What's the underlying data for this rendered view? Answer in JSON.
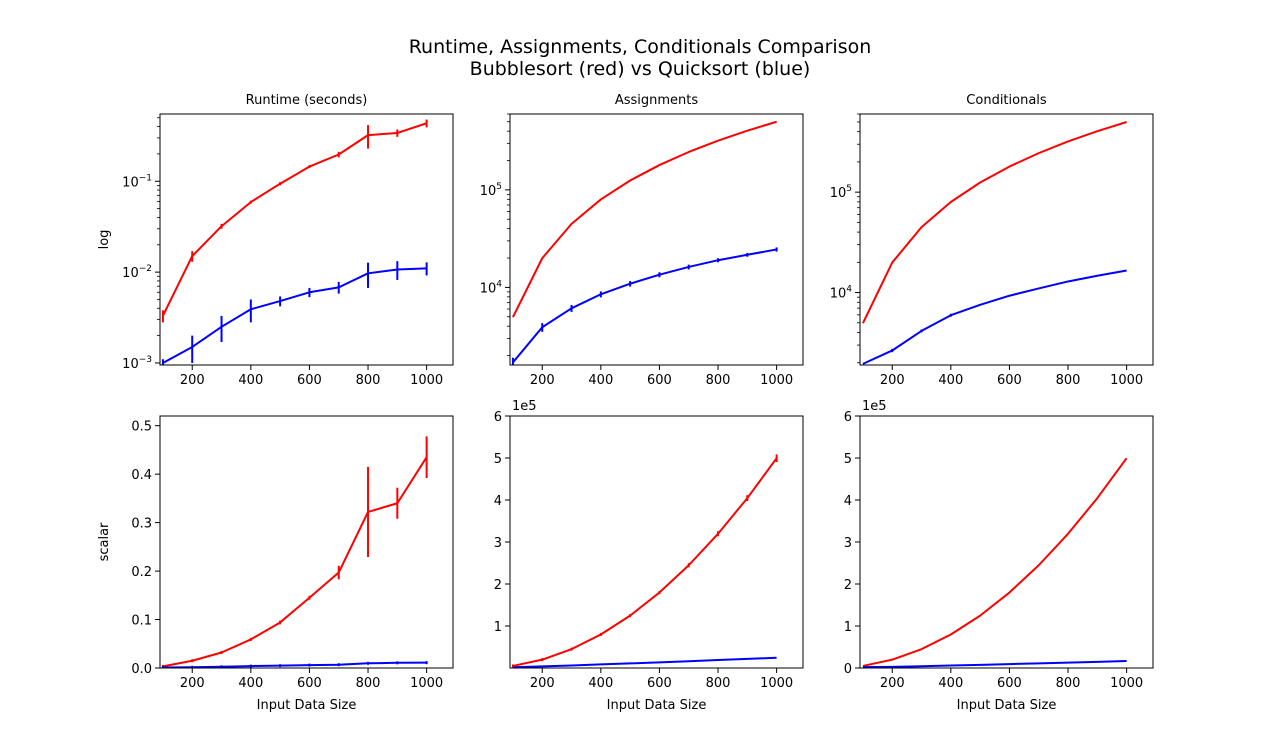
{
  "figure": {
    "title_line1": "Runtime, Assignments, Conditionals Comparison",
    "title_line2": "Bubblesort (red) vs Quicksort (blue)"
  },
  "colors": {
    "bubblesort": "#ff0000",
    "quicksort": "#0000ff"
  },
  "chart_data": [
    {
      "id": "runtime-log",
      "type": "line",
      "title": "Runtime (seconds)",
      "xlabel": "",
      "ylabel": "log",
      "yscale": "log",
      "xlim": [
        90,
        1090
      ],
      "ylim": [
        0.00095,
        0.55
      ],
      "xticks": [
        200,
        400,
        600,
        800,
        1000
      ],
      "yticks": [
        {
          "value": 0.001,
          "base": "10",
          "exp": "−3"
        },
        {
          "value": 0.01,
          "base": "10",
          "exp": "−2"
        },
        {
          "value": 0.1,
          "base": "10",
          "exp": "−1"
        }
      ],
      "x": [
        100,
        200,
        300,
        400,
        500,
        600,
        700,
        800,
        900,
        1000
      ],
      "series": [
        {
          "color": "#ff0000",
          "values": [
            0.0033,
            0.015,
            0.032,
            0.059,
            0.094,
            0.145,
            0.197,
            0.322,
            0.34,
            0.435
          ],
          "errors": [
            0.0005,
            0.002,
            0.002,
            0.002,
            0.004,
            0.004,
            0.014,
            0.093,
            0.032,
            0.043
          ]
        },
        {
          "color": "#0000ff",
          "values": [
            0.001,
            0.0015,
            0.0025,
            0.0039,
            0.0048,
            0.006,
            0.0068,
            0.0097,
            0.0107,
            0.011
          ],
          "errors": [
            0.0001,
            0.0005,
            0.0008,
            0.0011,
            0.0006,
            0.0007,
            0.001,
            0.003,
            0.0025,
            0.0018
          ]
        }
      ]
    },
    {
      "id": "assignments-log",
      "type": "line",
      "title": "Assignments",
      "xlabel": "",
      "ylabel": "",
      "yscale": "log",
      "xlim": [
        90,
        1090
      ],
      "ylim": [
        1600,
        600000
      ],
      "xticks": [
        200,
        400,
        600,
        800,
        1000
      ],
      "yticks": [
        {
          "value": 10000,
          "base": "10",
          "exp": "4"
        },
        {
          "value": 100000,
          "base": "10",
          "exp": "5"
        }
      ],
      "x": [
        100,
        200,
        300,
        400,
        500,
        600,
        700,
        800,
        900,
        1000
      ],
      "series": [
        {
          "color": "#ff0000",
          "values": [
            4950,
            19900,
            44850,
            79800,
            124750,
            179700,
            244650,
            319600,
            404550,
            499500
          ],
          "errors": [
            0,
            0,
            0,
            0,
            0,
            0,
            0,
            0,
            0,
            0
          ]
        },
        {
          "color": "#0000ff",
          "values": [
            1700,
            3900,
            6100,
            8500,
            10900,
            13500,
            16200,
            19000,
            21600,
            24500
          ],
          "errors": [
            200,
            400,
            500,
            600,
            700,
            800,
            900,
            900,
            1000,
            1200
          ]
        }
      ]
    },
    {
      "id": "conditionals-log",
      "type": "line",
      "title": "Conditionals",
      "xlabel": "",
      "ylabel": "",
      "yscale": "log",
      "xlim": [
        90,
        1090
      ],
      "ylim": [
        1900,
        600000
      ],
      "xticks": [
        200,
        400,
        600,
        800,
        1000
      ],
      "yticks": [
        {
          "value": 10000,
          "base": "10",
          "exp": "4"
        },
        {
          "value": 100000,
          "base": "10",
          "exp": "5"
        }
      ],
      "x": [
        100,
        200,
        300,
        400,
        500,
        600,
        700,
        800,
        900,
        1000
      ],
      "series": [
        {
          "color": "#ff0000",
          "values": [
            4950,
            19900,
            44850,
            79800,
            124750,
            179700,
            244650,
            319600,
            404550,
            499500
          ],
          "errors": [
            0,
            0,
            0,
            0,
            0,
            0,
            0,
            0,
            0,
            0
          ]
        },
        {
          "color": "#0000ff",
          "values": [
            1950,
            2650,
            4150,
            5950,
            7550,
            9300,
            11000,
            12900,
            14700,
            16600
          ],
          "errors": [
            0,
            100,
            100,
            150,
            0,
            0,
            0,
            0,
            0,
            0
          ]
        }
      ]
    },
    {
      "id": "runtime-scalar",
      "type": "line",
      "title": "",
      "xlabel": "Input Data Size",
      "ylabel": "scalar",
      "yscale": "linear",
      "xlim": [
        90,
        1090
      ],
      "ylim": [
        0,
        0.52
      ],
      "xticks": [
        200,
        400,
        600,
        800,
        1000
      ],
      "yticks": [
        {
          "value": 0,
          "label": "0.0"
        },
        {
          "value": 0.1,
          "label": "0.1"
        },
        {
          "value": 0.2,
          "label": "0.2"
        },
        {
          "value": 0.3,
          "label": "0.3"
        },
        {
          "value": 0.4,
          "label": "0.4"
        },
        {
          "value": 0.5,
          "label": "0.5"
        }
      ],
      "x": [
        100,
        200,
        300,
        400,
        500,
        600,
        700,
        800,
        900,
        1000
      ],
      "series": [
        {
          "color": "#ff0000",
          "values": [
            0.0033,
            0.015,
            0.032,
            0.059,
            0.094,
            0.145,
            0.197,
            0.322,
            0.34,
            0.435
          ],
          "errors": [
            0.0005,
            0.002,
            0.002,
            0.002,
            0.004,
            0.004,
            0.014,
            0.093,
            0.032,
            0.043
          ]
        },
        {
          "color": "#0000ff",
          "values": [
            0.001,
            0.0015,
            0.0025,
            0.0039,
            0.0048,
            0.006,
            0.0068,
            0.0097,
            0.0107,
            0.011
          ],
          "errors": [
            0.0001,
            0.0005,
            0.0008,
            0.0011,
            0.0006,
            0.0007,
            0.001,
            0.003,
            0.0025,
            0.0018
          ]
        }
      ]
    },
    {
      "id": "assignments-scalar",
      "type": "line",
      "title": "",
      "xlabel": "Input Data Size",
      "ylabel": "",
      "offset_label": "1e5",
      "yscale": "linear",
      "xlim": [
        90,
        1090
      ],
      "ylim": [
        0,
        600000
      ],
      "xticks": [
        200,
        400,
        600,
        800,
        1000
      ],
      "yticks": [
        {
          "value": 100000,
          "label": "1"
        },
        {
          "value": 200000,
          "label": "2"
        },
        {
          "value": 300000,
          "label": "3"
        },
        {
          "value": 400000,
          "label": "4"
        },
        {
          "value": 500000,
          "label": "5"
        },
        {
          "value": 600000,
          "label": "6"
        }
      ],
      "x": [
        100,
        200,
        300,
        400,
        500,
        600,
        700,
        800,
        900,
        1000
      ],
      "series": [
        {
          "color": "#ff0000",
          "values": [
            4950,
            19900,
            44850,
            79800,
            124750,
            179700,
            244650,
            319600,
            404550,
            499500
          ],
          "errors": [
            500,
            1000,
            2000,
            2500,
            3000,
            3500,
            5000,
            6000,
            7000,
            9000
          ]
        },
        {
          "color": "#0000ff",
          "values": [
            1700,
            3900,
            6100,
            8500,
            10900,
            13500,
            16200,
            19000,
            21600,
            24500
          ],
          "errors": [
            0,
            0,
            0,
            0,
            0,
            0,
            0,
            0,
            0,
            0
          ]
        }
      ]
    },
    {
      "id": "conditionals-scalar",
      "type": "line",
      "title": "",
      "xlabel": "Input Data Size",
      "ylabel": "",
      "offset_label": "1e5",
      "yscale": "linear",
      "xlim": [
        90,
        1090
      ],
      "ylim": [
        0,
        600000
      ],
      "xticks": [
        200,
        400,
        600,
        800,
        1000
      ],
      "yticks": [
        {
          "value": 0,
          "label": "0"
        },
        {
          "value": 100000,
          "label": "1"
        },
        {
          "value": 200000,
          "label": "2"
        },
        {
          "value": 300000,
          "label": "3"
        },
        {
          "value": 400000,
          "label": "4"
        },
        {
          "value": 500000,
          "label": "5"
        },
        {
          "value": 600000,
          "label": "6"
        }
      ],
      "x": [
        100,
        200,
        300,
        400,
        500,
        600,
        700,
        800,
        900,
        1000
      ],
      "series": [
        {
          "color": "#ff0000",
          "values": [
            4950,
            19900,
            44850,
            79800,
            124750,
            179700,
            244650,
            319600,
            404550,
            499500
          ],
          "errors": [
            0,
            0,
            0,
            0,
            0,
            0,
            0,
            0,
            0,
            0
          ]
        },
        {
          "color": "#0000ff",
          "values": [
            1950,
            2650,
            4150,
            5950,
            7550,
            9300,
            11000,
            12900,
            14700,
            16600
          ],
          "errors": [
            0,
            0,
            0,
            0,
            0,
            0,
            0,
            0,
            0,
            0
          ]
        }
      ]
    }
  ]
}
